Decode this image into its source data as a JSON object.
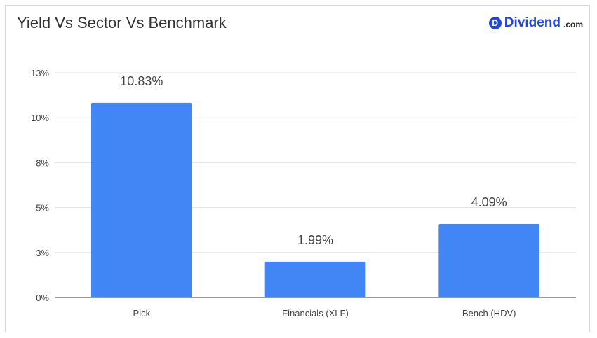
{
  "header": {
    "title": "Yield Vs Sector Vs Benchmark",
    "brand": {
      "badge": "D",
      "name": "Dividend",
      "tld": ".com",
      "color": "#2248d8"
    }
  },
  "colors": {
    "bar": "#4285f4",
    "grid": "#e2e2e2",
    "axis": "#333333"
  },
  "chart_data": {
    "type": "bar",
    "categories": [
      "Pick",
      "Financials (XLF)",
      "Bench (HDV)"
    ],
    "values": [
      10.83,
      1.99,
      4.09
    ],
    "data_labels": [
      "10.83%",
      "1.99%",
      "4.09%"
    ],
    "y_ticks": [
      0,
      2.5,
      5,
      7.5,
      10,
      12.5
    ],
    "y_tick_labels": [
      "0%",
      "3%",
      "5%",
      "8%",
      "10%",
      "13%"
    ],
    "ylim": [
      0,
      12.5
    ],
    "grid": true,
    "title": "Yield Vs Sector Vs Benchmark",
    "xlabel": "",
    "ylabel": ""
  }
}
